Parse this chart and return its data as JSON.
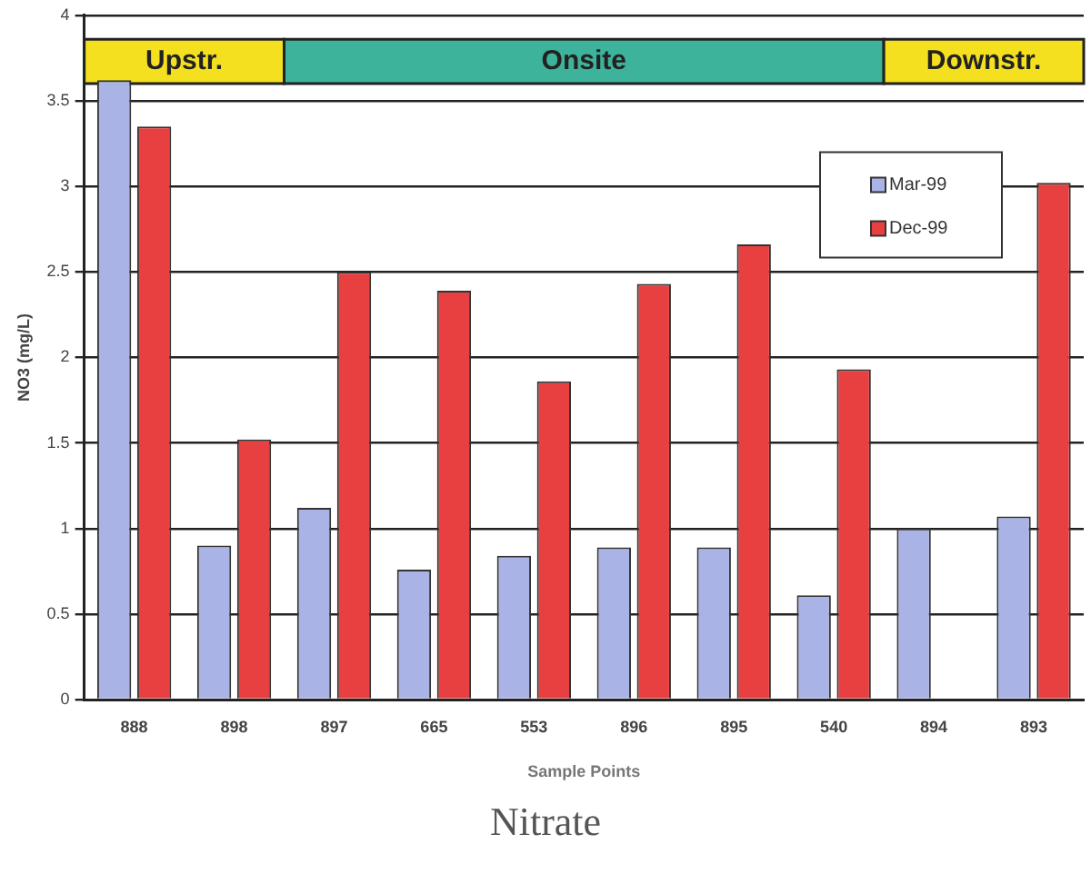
{
  "chart_data": {
    "type": "bar",
    "title": "Nitrate",
    "xlabel": "Sample Points",
    "ylabel": "NO3 (mg/L)",
    "categories": [
      "888",
      "898",
      "897",
      "665",
      "553",
      "896",
      "895",
      "540",
      "894",
      "893"
    ],
    "series": [
      {
        "name": "Mar-99",
        "color": "#a9b3e6",
        "values": [
          3.62,
          0.9,
          1.12,
          0.76,
          0.84,
          0.89,
          0.89,
          0.61,
          1.0,
          1.07
        ]
      },
      {
        "name": "Dec-99",
        "color": "#e84040",
        "values": [
          3.35,
          1.52,
          2.5,
          2.39,
          1.86,
          2.43,
          2.66,
          1.93,
          null,
          3.02
        ]
      }
    ],
    "bands": [
      {
        "axis": "x",
        "from": "888",
        "to": "898",
        "label": "Upstr.",
        "color": "#f5e020"
      },
      {
        "axis": "x",
        "from": "897",
        "to": "540",
        "label": "Onsite",
        "color": "#3cb39a"
      },
      {
        "axis": "x",
        "from": "894",
        "to": "893",
        "label": "Downstr.",
        "color": "#f5e020"
      }
    ],
    "ylim": [
      0,
      4
    ],
    "yticks": [
      0,
      0.5,
      1,
      1.5,
      2,
      2.5,
      3,
      3.5,
      4
    ],
    "grid": "y",
    "legend": "top right"
  }
}
